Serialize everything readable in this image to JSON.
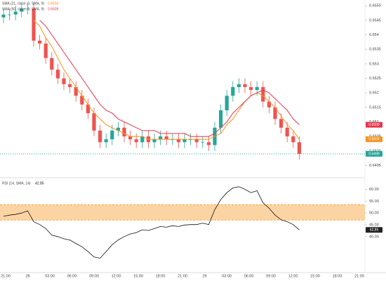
{
  "chart_data": [
    {
      "type": "candlestick",
      "up_color": "#26a69a",
      "down_color": "#ef5350",
      "open": [
        0.6546,
        0.6547,
        0.6547,
        0.6548,
        0.6549,
        0.6549,
        0.6538,
        0.6537,
        0.6532,
        0.6528,
        0.6525,
        0.6523,
        0.6522,
        0.6519,
        0.6516,
        0.6513,
        0.6507,
        0.6503,
        0.6504,
        0.6507,
        0.6508,
        0.6505,
        0.6504,
        0.6503,
        0.6505,
        0.6503,
        0.6504,
        0.6505,
        0.6504,
        0.6504,
        0.6503,
        0.6504,
        0.6504,
        0.6503,
        0.6503,
        0.6502,
        0.6508,
        0.6514,
        0.6519,
        0.6522,
        0.6523,
        0.6522,
        0.6521,
        0.6522,
        0.6517,
        0.6515,
        0.6511,
        0.6508,
        0.6505,
        0.6503
      ],
      "high": [
        0.6549,
        0.6549,
        0.655,
        0.6551,
        0.6551,
        0.6551,
        0.654,
        0.6539,
        0.6534,
        0.653,
        0.6527,
        0.6525,
        0.6524,
        0.6521,
        0.6518,
        0.6515,
        0.6509,
        0.6506,
        0.6509,
        0.651,
        0.651,
        0.6507,
        0.6506,
        0.6507,
        0.6507,
        0.6506,
        0.6507,
        0.6507,
        0.6506,
        0.6506,
        0.6506,
        0.6506,
        0.6506,
        0.6505,
        0.6505,
        0.651,
        0.6516,
        0.6521,
        0.6524,
        0.6525,
        0.6525,
        0.6524,
        0.6524,
        0.6524,
        0.6519,
        0.6517,
        0.6513,
        0.651,
        0.6507,
        0.6505
      ],
      "low": [
        0.6544,
        0.6545,
        0.6545,
        0.6546,
        0.6547,
        0.6536,
        0.6535,
        0.653,
        0.6526,
        0.6523,
        0.6521,
        0.652,
        0.6517,
        0.6514,
        0.6511,
        0.6505,
        0.6501,
        0.6501,
        0.6502,
        0.6505,
        0.6503,
        0.6502,
        0.6501,
        0.6501,
        0.6501,
        0.6501,
        0.6502,
        0.6502,
        0.6502,
        0.6501,
        0.6501,
        0.6502,
        0.6501,
        0.6501,
        0.65,
        0.65,
        0.6506,
        0.6512,
        0.6517,
        0.652,
        0.652,
        0.6519,
        0.6519,
        0.6515,
        0.6513,
        0.6509,
        0.6506,
        0.6503,
        0.6501,
        0.6497
      ],
      "close": [
        0.6547,
        0.6547,
        0.6548,
        0.6549,
        0.6549,
        0.6538,
        0.6537,
        0.6532,
        0.6528,
        0.6525,
        0.6523,
        0.6522,
        0.6519,
        0.6516,
        0.6513,
        0.6507,
        0.6503,
        0.6504,
        0.6507,
        0.6508,
        0.6505,
        0.6504,
        0.6503,
        0.6505,
        0.6503,
        0.6504,
        0.6505,
        0.6504,
        0.6504,
        0.6503,
        0.6504,
        0.6504,
        0.6503,
        0.6503,
        0.6502,
        0.6508,
        0.6514,
        0.6519,
        0.6522,
        0.6523,
        0.6522,
        0.6521,
        0.6522,
        0.6517,
        0.6515,
        0.6511,
        0.6508,
        0.6505,
        0.6503,
        0.6499
      ],
      "series": [
        {
          "name": "SMA (21, close, 0, SMA, 9)",
          "color": "#f7931a",
          "values": [
            null,
            null,
            null,
            null,
            null,
            0.6545,
            0.6543,
            0.6539,
            0.6536,
            0.6532,
            0.6528,
            0.6525,
            0.6522,
            0.6519,
            0.6516,
            0.6513,
            0.6511,
            0.6509,
            0.6508,
            0.6507,
            0.6506,
            0.6505,
            0.6505,
            0.6505,
            0.6504,
            0.6504,
            0.6504,
            0.6504,
            0.6504,
            0.6504,
            0.6504,
            0.6504,
            0.6504,
            0.6504,
            0.6504,
            0.6505,
            0.6506,
            0.6509,
            0.6511,
            0.6514,
            0.6517,
            0.6519,
            0.652,
            0.6519,
            0.6517,
            0.6515,
            0.6512,
            0.6509,
            0.6507,
            0.6504
          ]
        },
        {
          "name": "SMA (50, close, 0, SMA, 9)",
          "color": "#e8344e",
          "values": [
            null,
            null,
            null,
            null,
            null,
            null,
            0.6545,
            0.6543,
            0.654,
            0.6537,
            0.6534,
            0.6531,
            0.6528,
            0.6525,
            0.6522,
            0.6519,
            0.6516,
            0.6514,
            0.6513,
            0.6511,
            0.651,
            0.6509,
            0.6508,
            0.6507,
            0.6507,
            0.6507,
            0.6506,
            0.6506,
            0.6506,
            0.6506,
            0.6506,
            0.6505,
            0.6505,
            0.6505,
            0.6505,
            0.6506,
            0.6508,
            0.651,
            0.6513,
            0.6515,
            0.6517,
            0.6519,
            0.652,
            0.6521,
            0.652,
            0.6518,
            0.6516,
            0.6514,
            0.6511,
            0.6509
          ]
        }
      ],
      "ylim": [
        0.6491,
        0.6552
      ],
      "yticks": [
        0.6495,
        {
          "value": 0.65,
          "label": "0.6500"
        },
        0.6505,
        0.651,
        0.6515,
        0.652,
        0.6525,
        0.653,
        0.6535,
        0.654,
        0.6545,
        {
          "value": 0.655,
          "label": "0.6550"
        }
      ],
      "x_labels": [
        "21:00",
        "28",
        "03:00",
        "06:00",
        "09:00",
        "12:00",
        "15:00",
        "18:00",
        "21:00",
        "29",
        "03:00",
        "06:00",
        "09:00",
        "12:00",
        "15:00",
        "18:00",
        "21:00"
      ]
    },
    {
      "type": "line",
      "title": "RSI (14, SMA, 14)",
      "color": "#111111",
      "band_color": "#f7931a",
      "band": [
        47,
        53.5
      ],
      "values": [
        48.6,
        49.1,
        49.4,
        50,
        50.9,
        46.3,
        45.1,
        43.4,
        40.6,
        40,
        39.1,
        38.6,
        37.1,
        35.7,
        33.7,
        31.4,
        30.9,
        33.7,
        36.6,
        38.6,
        40,
        41.1,
        41.7,
        42.9,
        42.6,
        43.4,
        44.3,
        44,
        44.6,
        44.3,
        44.9,
        45.1,
        45.1,
        45.7,
        45.1,
        51.4,
        55.7,
        58.6,
        60.6,
        61.1,
        60,
        58.6,
        59.4,
        54.3,
        52,
        49.1,
        47.1,
        46.3,
        45.1,
        42.85
      ],
      "ylim": [
        26,
        64
      ],
      "yticks": [
        {
          "value": 60,
          "label": "60.00"
        },
        {
          "value": 55,
          "label": "55.00"
        },
        {
          "value": 50,
          "label": "50.00"
        },
        {
          "value": 45,
          "label": "45.00"
        },
        {
          "value": 40,
          "label": "40.00"
        }
      ]
    }
  ]
}
